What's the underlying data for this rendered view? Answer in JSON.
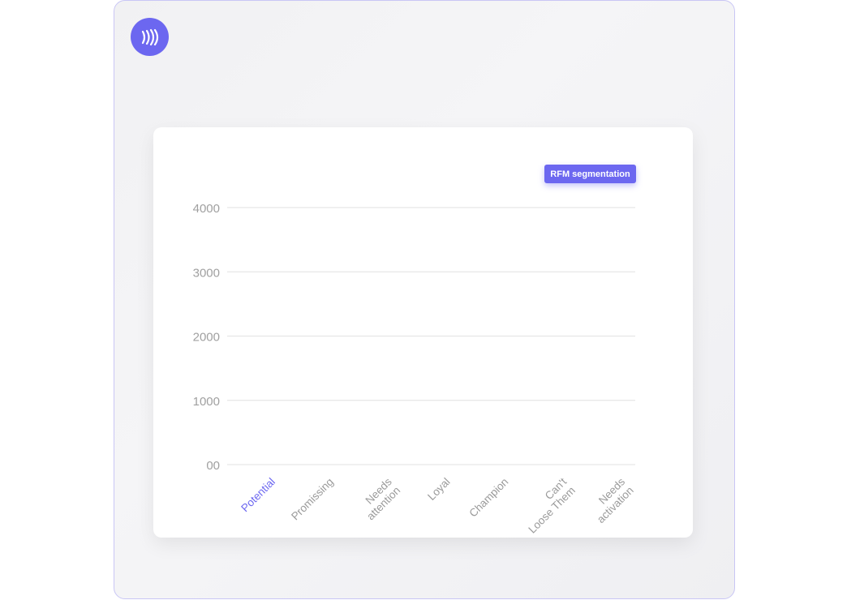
{
  "brand": {
    "logo_icon": "sound-waves-icon",
    "accent": "#6c67f0"
  },
  "badge": {
    "label": "RFM segmentation"
  },
  "chart_data": {
    "type": "bar",
    "categories": [
      "Potential",
      "Promissing",
      "Needs attention",
      "Loyal",
      "Champion",
      "Can't Loose Them",
      "Needs activation"
    ],
    "category_lines": [
      [
        "Potential"
      ],
      [
        "Promissing"
      ],
      [
        "Needs",
        "attention"
      ],
      [
        "Loyal"
      ],
      [
        "Champion"
      ],
      [
        "Can't",
        "Loose Them"
      ],
      [
        "Needs",
        "activation"
      ]
    ],
    "highlighted_category": "Potential",
    "values": [
      0,
      0,
      0,
      0,
      0,
      0,
      0
    ],
    "ylim": [
      0,
      4000
    ],
    "yticks": [
      0,
      1000,
      2000,
      3000,
      4000
    ],
    "ytick_labels": [
      "00",
      "1000",
      "2000",
      "3000",
      "4000"
    ],
    "grid": true,
    "colors": {
      "highlight": "#6c67f0",
      "label": "#9a9a9a",
      "grid": "#e6e6e6"
    }
  }
}
